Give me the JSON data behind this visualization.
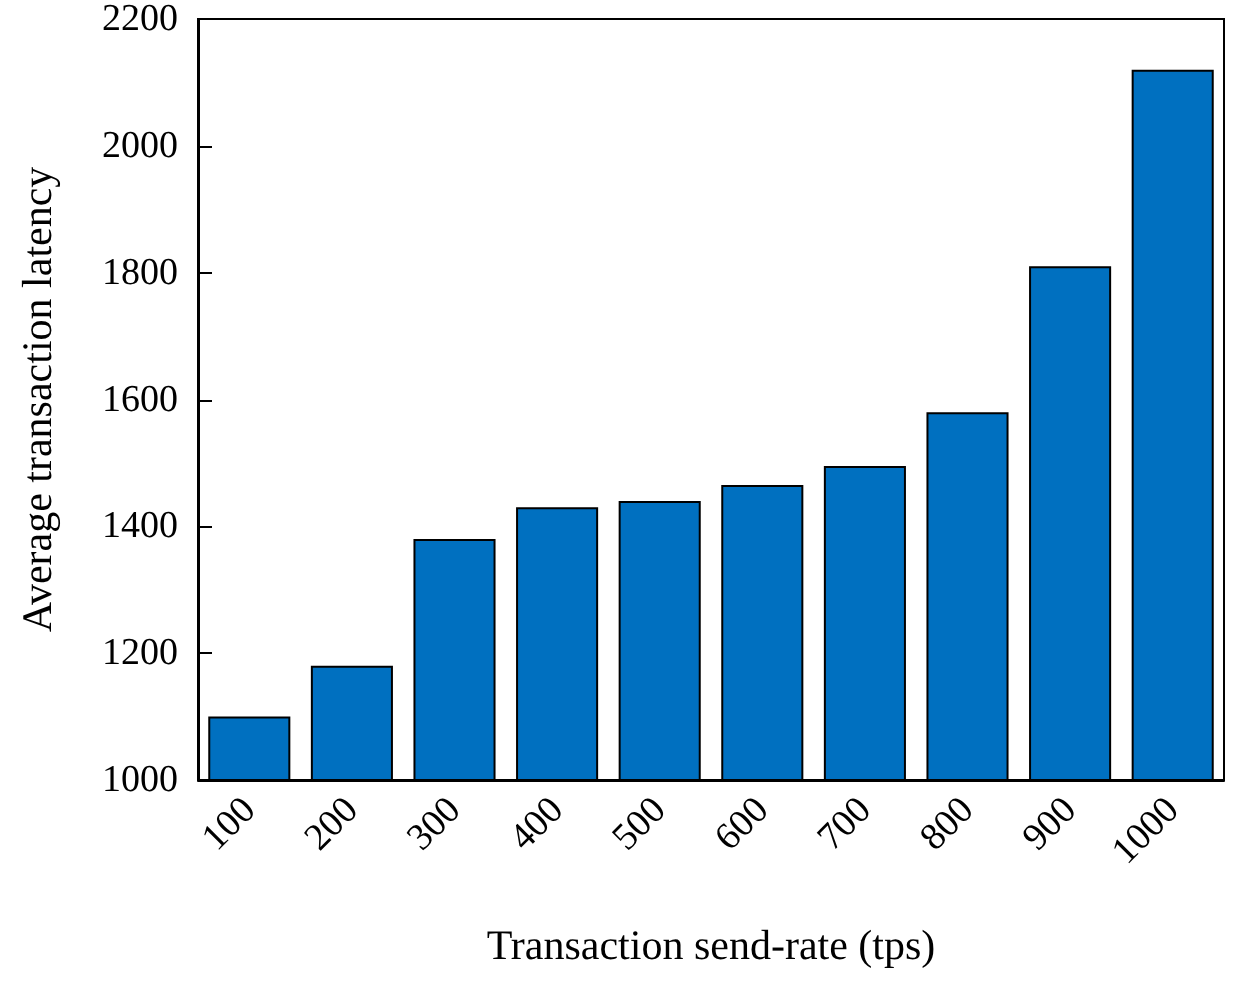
{
  "chart_data": {
    "type": "bar",
    "xlabel": "Transaction send-rate (tps)",
    "ylabel": "Average transaction latency",
    "categories": [
      "100",
      "200",
      "300",
      "400",
      "500",
      "600",
      "700",
      "800",
      "900",
      "1000"
    ],
    "values": [
      1100,
      1180,
      1380,
      1430,
      1440,
      1465,
      1495,
      1580,
      1810,
      2120
    ],
    "color": "#0070c0",
    "ylim": [
      1000,
      2200
    ],
    "yticks": [
      1000,
      1200,
      1400,
      1600,
      1800,
      2000,
      2200
    ],
    "grid": false
  }
}
